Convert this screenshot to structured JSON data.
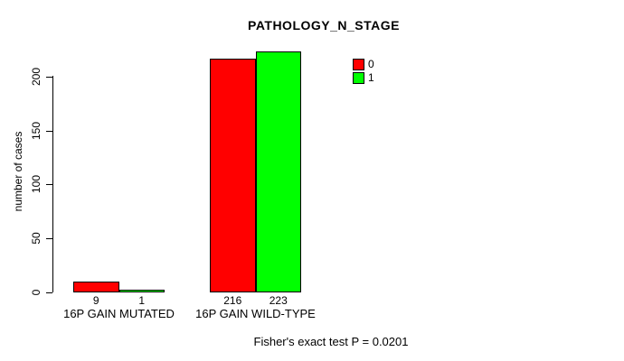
{
  "chart_data": {
    "type": "bar",
    "title": "PATHOLOGY_N_STAGE",
    "categories": [
      "16P GAIN MUTATED",
      "16P GAIN WILD-TYPE"
    ],
    "series": [
      {
        "name": "0",
        "color": "#ff0000",
        "values": [
          9,
          216
        ]
      },
      {
        "name": "1",
        "color": "#00ff00",
        "values": [
          1,
          223
        ]
      }
    ],
    "ylabel": "number of cases",
    "xlabel": "",
    "yticks": [
      0,
      50,
      100,
      150,
      200
    ],
    "ylim": [
      0,
      230
    ],
    "grid": false,
    "bar_value_labels_shown": true,
    "legend_position": "top-right",
    "annotation": "Fisher's exact test P = 0.0201"
  }
}
